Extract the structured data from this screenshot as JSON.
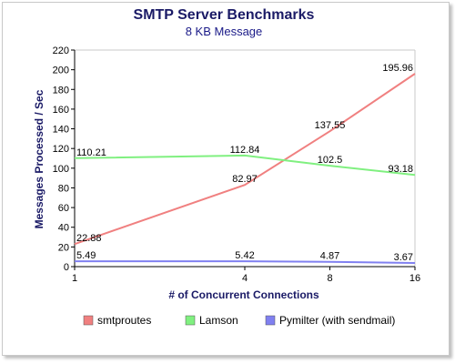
{
  "chart_data": {
    "type": "line",
    "title": "SMTP Server Benchmarks",
    "subtitle": "8 KB Message",
    "xlabel": "# of Concurrent Connections",
    "ylabel": "Messages Processed / Sec",
    "x": [
      1,
      4,
      8,
      16
    ],
    "x_ticks": [
      "1",
      "4",
      "8",
      "16"
    ],
    "ylim": [
      0,
      220
    ],
    "y_ticks": [
      0,
      20,
      40,
      60,
      80,
      100,
      120,
      140,
      160,
      180,
      200,
      220
    ],
    "grid": false,
    "legend_position": "bottom",
    "series": [
      {
        "name": "smtproutes",
        "color": "#f08080",
        "values": [
          22.88,
          82.97,
          137.55,
          195.96
        ],
        "labels": [
          "22.88",
          "82.97",
          "137.55",
          "195.96"
        ]
      },
      {
        "name": "Lamson",
        "color": "#80f080",
        "values": [
          110.21,
          112.84,
          102.5,
          93.18
        ],
        "labels": [
          "110.21",
          "112.84",
          "102.5",
          "93.18"
        ]
      },
      {
        "name": "Pymilter (with sendmail)",
        "color": "#8080f0",
        "values": [
          5.49,
          5.42,
          4.87,
          3.67
        ],
        "labels": [
          "5.49",
          "5.42",
          "4.87",
          "3.67"
        ]
      }
    ]
  }
}
